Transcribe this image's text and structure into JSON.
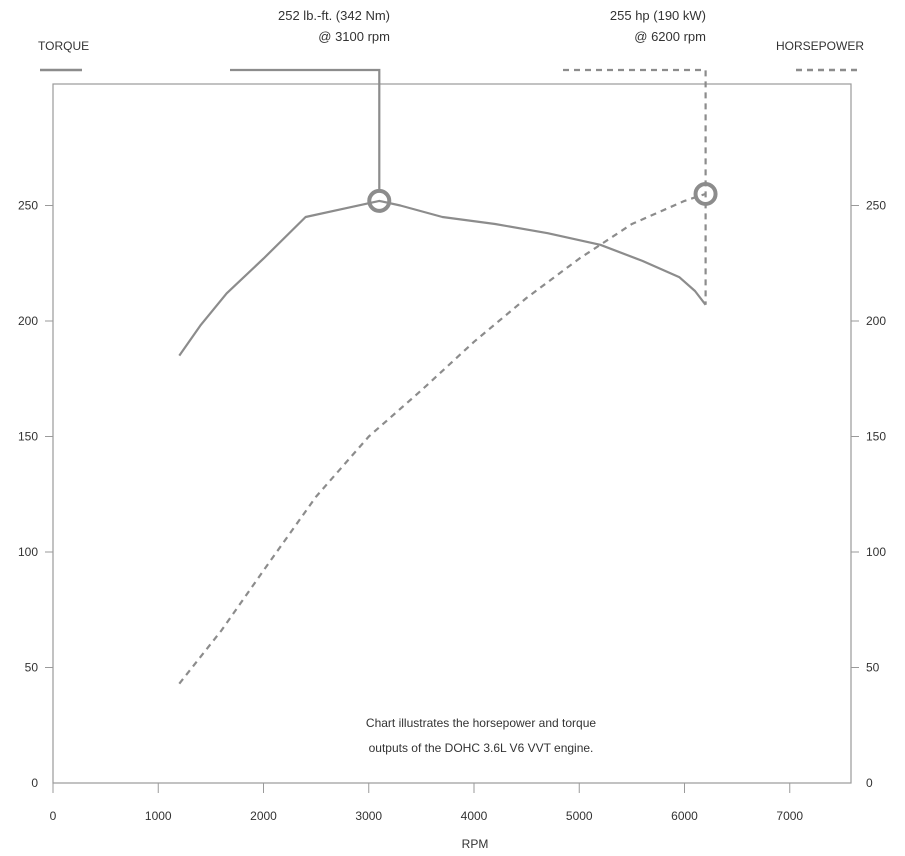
{
  "colors": {
    "line": "#8c8c8c",
    "frame": "#9a9a9a",
    "text": "#333333",
    "background": "#ffffff"
  },
  "legend": {
    "torque_label": "TORQUE",
    "horsepower_label": "HORSEPOWER"
  },
  "callouts": {
    "torque_line1": "252 lb.-ft. (342 Nm)",
    "torque_line2": "@ 3100 rpm",
    "horsepower_line1": "255 hp (190 kW)",
    "horsepower_line2": "@ 6200 rpm"
  },
  "note": {
    "line1": "Chart illustrates the horsepower and torque",
    "line2": "outputs of the DOHC 3.6L V6 VVT engine."
  },
  "chart_data": {
    "type": "line",
    "xlabel": "RPM",
    "ylabel": "",
    "xlim": [
      0,
      7600
    ],
    "ylim": [
      0,
      300
    ],
    "x_ticks": [
      0,
      1000,
      2000,
      3000,
      4000,
      5000,
      6000,
      7000
    ],
    "y_ticks": [
      0,
      50,
      100,
      150,
      200,
      250
    ],
    "y_tick_labels": [
      "0",
      "50",
      "100",
      "150",
      "200",
      "250"
    ],
    "x_tick_labels": [
      "0",
      "1000",
      "2000",
      "3000",
      "4000",
      "5000",
      "6000",
      "7000"
    ],
    "grid": false,
    "legend_placement": "top",
    "series": [
      {
        "name": "TORQUE",
        "style": "solid",
        "axis": "left",
        "x": [
          1200,
          1400,
          1650,
          2000,
          2400,
          2800,
          3100,
          3300,
          3700,
          4200,
          4700,
          5200,
          5600,
          5950,
          6100,
          6200
        ],
        "y": [
          185,
          198,
          212,
          227,
          245,
          249,
          252,
          250,
          245,
          242,
          238,
          233,
          226,
          219,
          213,
          207
        ]
      },
      {
        "name": "HORSEPOWER",
        "style": "dashed",
        "axis": "right",
        "x": [
          1200,
          1600,
          2000,
          2500,
          3000,
          3500,
          4000,
          4500,
          5000,
          5500,
          6000,
          6200
        ],
        "y": [
          43,
          66,
          92,
          124,
          150,
          170,
          191,
          210,
          227,
          242,
          252,
          255
        ]
      }
    ],
    "peaks": [
      {
        "series": "TORQUE",
        "x": 3100,
        "y": 252
      },
      {
        "series": "HORSEPOWER",
        "x": 6200,
        "y": 255
      }
    ]
  }
}
